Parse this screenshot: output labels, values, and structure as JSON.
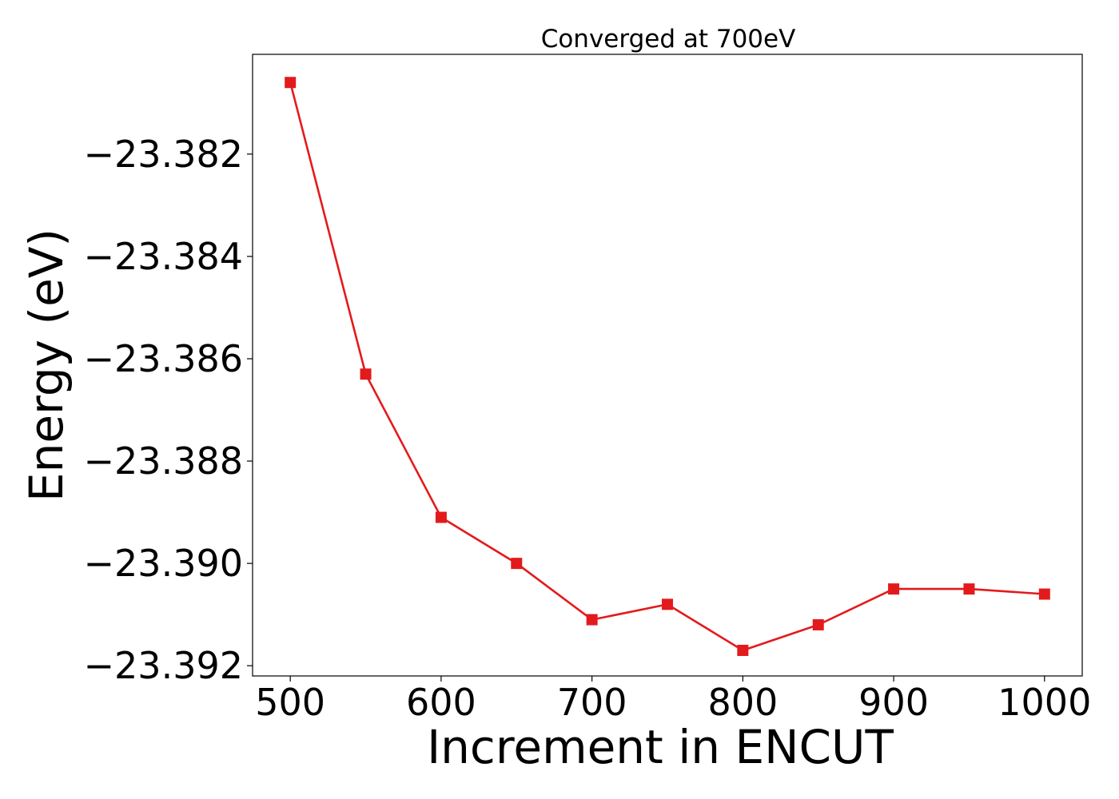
{
  "chart_data": {
    "type": "line",
    "title": "Converged at 700eV",
    "xlabel": "Increment in ENCUT",
    "ylabel": "Energy (eV)",
    "xlim": [
      475,
      1025
    ],
    "ylim": [
      -23.3922,
      -23.38005
    ],
    "xticks": [
      500,
      600,
      700,
      800,
      900,
      1000
    ],
    "xtick_labels": [
      "500",
      "600",
      "700",
      "800",
      "900",
      "1000"
    ],
    "yticks": [
      -23.382,
      -23.384,
      -23.386,
      -23.388,
      -23.39,
      -23.392
    ],
    "ytick_labels": [
      "−23.382",
      "−23.384",
      "−23.386",
      "−23.388",
      "−23.390",
      "−23.392"
    ],
    "grid": false,
    "legend": "none",
    "series": [
      {
        "color": "#e31a1c",
        "marker": "square",
        "x": [
          500,
          550,
          600,
          650,
          700,
          750,
          800,
          850,
          900,
          950,
          1000
        ],
        "y": [
          -23.3806,
          -23.3863,
          -23.3891,
          -23.39,
          -23.3911,
          -23.3908,
          -23.3917,
          -23.3912,
          -23.3905,
          -23.3905,
          -23.3906
        ]
      }
    ]
  }
}
